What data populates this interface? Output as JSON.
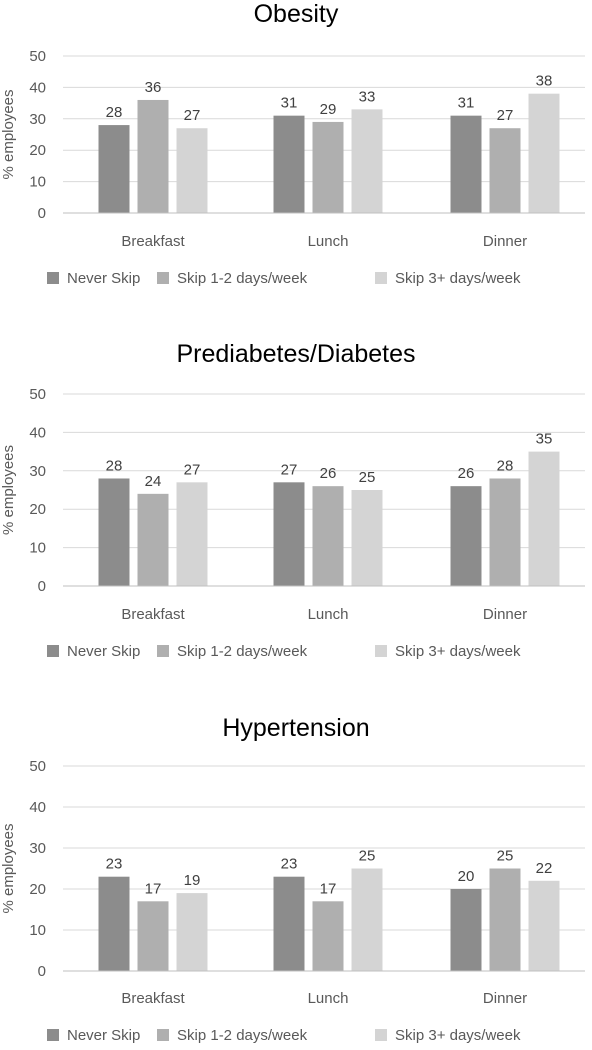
{
  "chart_data": [
    {
      "type": "bar",
      "title": "Obesity",
      "ylabel": "% employees",
      "xlabel": "",
      "categories": [
        "Breakfast",
        "Lunch",
        "Dinner"
      ],
      "ylim": [
        0,
        50
      ],
      "yticks": [
        0,
        10,
        20,
        30,
        40,
        50
      ],
      "grid": true,
      "legend": "bottom",
      "series": [
        {
          "name": "Never Skip",
          "values": [
            28,
            31,
            31
          ],
          "color": "#8c8c8c"
        },
        {
          "name": "Skip 1-2 days/week",
          "values": [
            36,
            29,
            27
          ],
          "color": "#afafaf"
        },
        {
          "name": "Skip 3+ days/week",
          "values": [
            27,
            33,
            38
          ],
          "color": "#d4d4d4"
        }
      ]
    },
    {
      "type": "bar",
      "title": "Prediabetes/Diabetes",
      "ylabel": "% employees",
      "xlabel": "",
      "categories": [
        "Breakfast",
        "Lunch",
        "Dinner"
      ],
      "ylim": [
        0,
        50
      ],
      "yticks": [
        0,
        10,
        20,
        30,
        40,
        50
      ],
      "grid": true,
      "legend": "bottom",
      "series": [
        {
          "name": "Never Skip",
          "values": [
            28,
            27,
            26
          ],
          "color": "#8c8c8c"
        },
        {
          "name": "Skip 1-2 days/week",
          "values": [
            24,
            26,
            28
          ],
          "color": "#afafaf"
        },
        {
          "name": "Skip 3+ days/week",
          "values": [
            27,
            25,
            35
          ],
          "color": "#d4d4d4"
        }
      ]
    },
    {
      "type": "bar",
      "title": "Hypertension",
      "ylabel": "% employees",
      "xlabel": "",
      "categories": [
        "Breakfast",
        "Lunch",
        "Dinner"
      ],
      "ylim": [
        0,
        50
      ],
      "yticks": [
        0,
        10,
        20,
        30,
        40,
        50
      ],
      "grid": true,
      "legend": "bottom",
      "series": [
        {
          "name": "Never Skip",
          "values": [
            23,
            23,
            20
          ],
          "color": "#8c8c8c"
        },
        {
          "name": "Skip 1-2 days/week",
          "values": [
            17,
            17,
            25
          ],
          "color": "#afafaf"
        },
        {
          "name": "Skip 3+ days/week",
          "values": [
            19,
            25,
            22
          ],
          "color": "#d4d4d4"
        }
      ]
    }
  ]
}
